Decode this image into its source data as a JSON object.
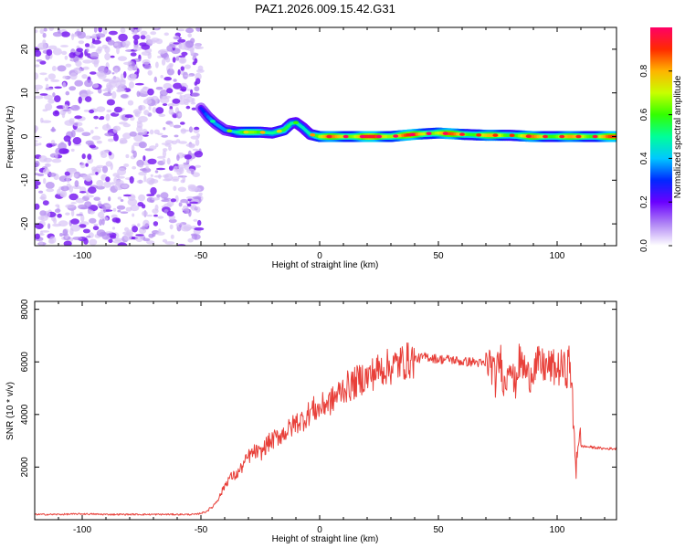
{
  "figure": {
    "title": "PAZ1.2026.009.15.42.G31"
  },
  "chart_data": [
    {
      "type": "heatmap",
      "id": "spectrogram",
      "title": "PAZ1.2026.009.15.42.G31",
      "xlabel": "Height of straight line (km)",
      "ylabel": "Frequency (Hz)",
      "xlim": [
        -120,
        125
      ],
      "ylim": [
        -25,
        25
      ],
      "xticks": [
        -100,
        -50,
        0,
        50,
        100
      ],
      "yticks": [
        -20,
        -10,
        0,
        10,
        20
      ],
      "noise_region_x": [
        -120,
        -50
      ],
      "ridge": {
        "x": [
          -50,
          -47,
          -44,
          -40,
          -35,
          -30,
          -25,
          -20,
          -15,
          -12,
          -10,
          -7,
          -4,
          0,
          5,
          10,
          20,
          30,
          40,
          50,
          60,
          70,
          80,
          90,
          100,
          108,
          110,
          125
        ],
        "freq": [
          6.5,
          4.5,
          3,
          1.5,
          1,
          1,
          1,
          0.8,
          1.5,
          3,
          3.2,
          2,
          0.5,
          0,
          0,
          0,
          0,
          0,
          0.5,
          0.8,
          0.5,
          0.3,
          0.3,
          0,
          0,
          0,
          0,
          0
        ],
        "amplitude": [
          0.3,
          0.35,
          0.4,
          0.5,
          0.6,
          0.65,
          0.7,
          0.7,
          0.6,
          0.5,
          0.5,
          0.6,
          0.7,
          0.8,
          0.85,
          0.9,
          0.95,
          0.95,
          0.9,
          0.9,
          0.85,
          0.8,
          0.8,
          0.85,
          0.85,
          0.8,
          0.85,
          0.9
        ]
      },
      "colorbar": {
        "label": "Normalized spectral amplitude",
        "range": [
          0,
          1
        ],
        "ticks": [
          "0.0",
          "0.2",
          "0.4",
          "0.6",
          "0.8"
        ]
      }
    },
    {
      "type": "line",
      "id": "snr",
      "xlabel": "Height of straight line (km)",
      "ylabel": "SNR (10 * v/v)",
      "xlim": [
        -120,
        125
      ],
      "ylim": [
        0,
        8300
      ],
      "xticks": [
        -100,
        -50,
        0,
        50,
        100
      ],
      "yticks": [
        2000,
        4000,
        6000,
        8000
      ],
      "color": "#e8403a",
      "series": [
        {
          "name": "SNR",
          "x": [
            -120,
            -110,
            -100,
            -90,
            -80,
            -70,
            -60,
            -52,
            -48,
            -45,
            -42,
            -40,
            -38,
            -35,
            -32,
            -30,
            -27,
            -25,
            -22,
            -20,
            -17,
            -15,
            -12,
            -10,
            -7,
            -5,
            -3,
            0,
            2,
            5,
            8,
            10,
            13,
            15,
            18,
            20,
            23,
            25,
            28,
            30,
            35,
            40,
            45,
            50,
            55,
            60,
            65,
            70,
            72,
            74,
            76,
            78,
            80,
            82,
            84,
            86,
            88,
            90,
            92,
            95,
            98,
            100,
            102,
            104,
            105,
            106,
            107,
            108,
            109,
            110,
            115,
            120,
            125
          ],
          "y": [
            200,
            200,
            220,
            200,
            200,
            200,
            200,
            200,
            300,
            500,
            900,
            1300,
            1600,
            1700,
            2100,
            2400,
            2600,
            2500,
            2900,
            3000,
            3200,
            3300,
            3500,
            3700,
            3800,
            4000,
            4200,
            4200,
            4400,
            4500,
            4800,
            5000,
            5100,
            5200,
            5400,
            5400,
            5600,
            5700,
            5800,
            5800,
            6000,
            6100,
            6200,
            6100,
            6100,
            6000,
            6000,
            5900,
            6000,
            5300,
            6200,
            5000,
            6300,
            5000,
            6000,
            5800,
            5400,
            5800,
            5900,
            5800,
            5800,
            5700,
            5800,
            5600,
            6100,
            5400,
            3200,
            2100,
            3300,
            2800,
            2750,
            2700,
            2700
          ]
        }
      ]
    }
  ]
}
